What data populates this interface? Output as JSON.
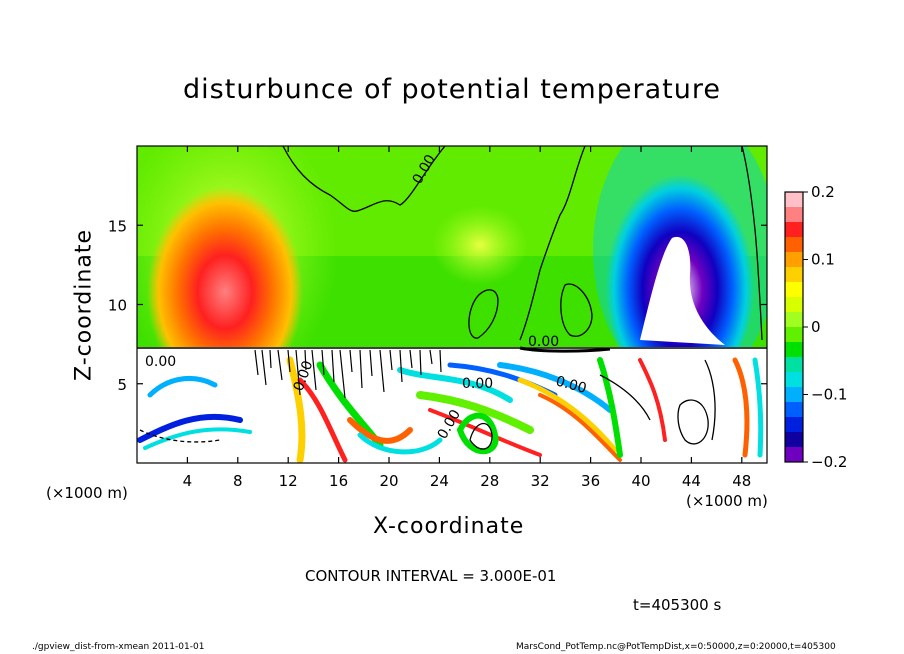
{
  "chart_data": {
    "type": "heatmap",
    "title": "disturbunce of potential temperature",
    "xlabel": "X-coordinate",
    "ylabel": "Z-coordinate",
    "x_unit": "(×1000 m)",
    "xlim": [
      0,
      50
    ],
    "ylim": [
      0,
      20
    ],
    "x_ticks": [
      "4",
      "8",
      "12",
      "16",
      "20",
      "24",
      "28",
      "32",
      "36",
      "40",
      "44",
      "48"
    ],
    "x_tick_values": [
      4,
      8,
      12,
      16,
      20,
      24,
      28,
      32,
      36,
      40,
      44,
      48
    ],
    "y_ticks": [
      "5",
      "10",
      "15"
    ],
    "y_tick_values": [
      5,
      10,
      15
    ],
    "colorbar": {
      "range": [
        -0.2,
        0.2
      ],
      "tick_labels": [
        "0.2",
        "0.1",
        "0",
        "−0.1",
        "−0.2"
      ],
      "tick_values": [
        0.2,
        0.1,
        0,
        -0.1,
        -0.2
      ],
      "colors": [
        "#ffc0c8",
        "#ff8080",
        "#ff2020",
        "#ff6000",
        "#ffa000",
        "#ffd000",
        "#ffff00",
        "#d8ff00",
        "#a0ff20",
        "#60f000",
        "#00e000",
        "#00e0a0",
        "#00e0e0",
        "#00b0ff",
        "#0060ff",
        "#0020e0",
        "#1000a0",
        "#7000c0"
      ]
    },
    "contour_labels": [
      "0.00",
      "0.00",
      "0.00",
      "0.00",
      "0.00",
      "0.00",
      "0.00"
    ],
    "contour_interval": "CONTOUR INTERVAL = 3.000E-01",
    "time": "t=405300 s"
  },
  "footer": {
    "left": "./gpview_dist-from-xmean  2011-01-01",
    "right": "MarsCond_PotTemp.nc@PotTempDist,x=0:50000,z=0:20000,t=405300"
  }
}
